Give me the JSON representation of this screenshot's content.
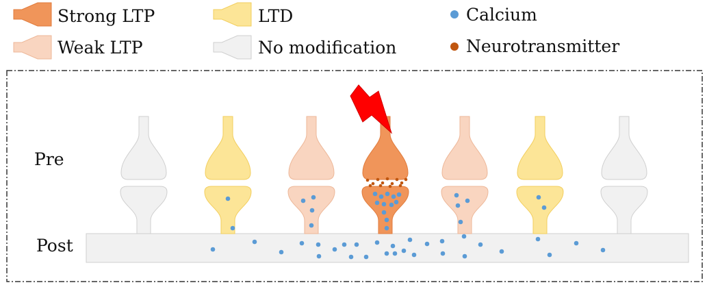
{
  "legend": {
    "strong_ltp": "Strong LTP",
    "weak_ltp": "Weak LTP",
    "ltd": "LTD",
    "no_modification": "No modification",
    "calcium": "Calcium",
    "neurotransmitter": "Neurotransmitter"
  },
  "labels": {
    "pre": "Pre",
    "post": "Post"
  },
  "colors": {
    "strong_ltp": "#F0955A",
    "strong_ltp_stroke": "#E07B3C",
    "weak_ltp": "#F9D5C0",
    "weak_ltp_stroke": "#EDB798",
    "ltd": "#FCE597",
    "ltd_stroke": "#F2CE5E",
    "no_modification": "#F1F1F1",
    "no_modification_stroke": "#CFCFCF",
    "calcium": "#5B9BD5",
    "neurotransmitter": "#C0560F",
    "stimulus": "#FF0000"
  },
  "synapses": [
    {
      "state": "no_modification",
      "stimulated": false
    },
    {
      "state": "ltd",
      "stimulated": false
    },
    {
      "state": "weak_ltp",
      "stimulated": false
    },
    {
      "state": "strong_ltp",
      "stimulated": true
    },
    {
      "state": "weak_ltp",
      "stimulated": false
    },
    {
      "state": "ltd",
      "stimulated": false
    },
    {
      "state": "no_modification",
      "stimulated": false
    }
  ]
}
